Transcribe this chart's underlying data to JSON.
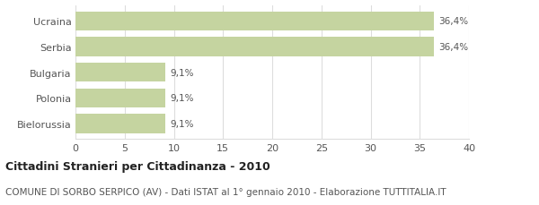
{
  "categories": [
    "Bielorussia",
    "Polonia",
    "Bulgaria",
    "Serbia",
    "Ucraina"
  ],
  "values": [
    9.1,
    9.1,
    9.1,
    36.4,
    36.4
  ],
  "labels": [
    "9,1%",
    "9,1%",
    "9,1%",
    "36,4%",
    "36,4%"
  ],
  "bar_color": "#c5d4a0",
  "xlim": [
    0,
    40
  ],
  "xticks": [
    0,
    5,
    10,
    15,
    20,
    25,
    30,
    35,
    40
  ],
  "title": "Cittadini Stranieri per Cittadinanza - 2010",
  "subtitle": "COMUNE DI SORBO SERPICO (AV) - Dati ISTAT al 1° gennaio 2010 - Elaborazione TUTTITALIA.IT",
  "title_fontsize": 9,
  "subtitle_fontsize": 7.5,
  "label_fontsize": 7.5,
  "tick_fontsize": 8,
  "category_fontsize": 8,
  "background_color": "#ffffff",
  "grid_color": "#dddddd",
  "text_color": "#555555",
  "bar_height": 0.75
}
